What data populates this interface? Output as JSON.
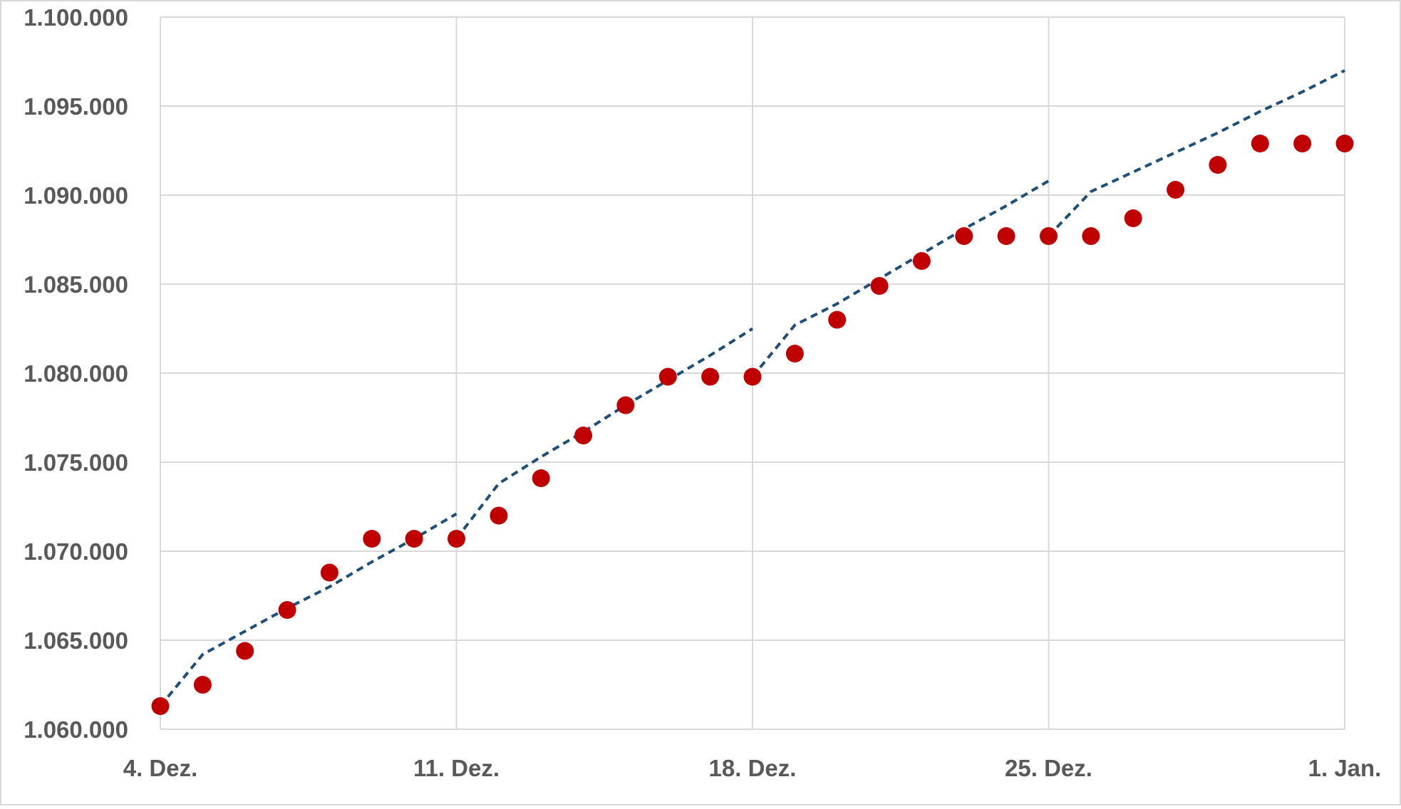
{
  "chart_data": {
    "type": "scatter",
    "title": "",
    "xlabel": "",
    "ylabel": "",
    "x_ticks": [
      "4. Dez.",
      "11. Dez.",
      "18. Dez.",
      "25. Dez.",
      "1. Jan."
    ],
    "y_ticks": [
      "1.060.000",
      "1.065.000",
      "1.070.000",
      "1.075.000",
      "1.080.000",
      "1.085.000",
      "1.090.000",
      "1.095.000",
      "1.100.000"
    ],
    "ylim": [
      1060000,
      1100000
    ],
    "grid": true,
    "legend": "none",
    "series": [
      {
        "kind": "points",
        "color": "#c00000",
        "points": [
          {
            "x": "4. Dez.",
            "y": 1061300
          },
          {
            "x": "5. Dez.",
            "y": 1062500
          },
          {
            "x": "6. Dez.",
            "y": 1064400
          },
          {
            "x": "7. Dez.",
            "y": 1066700
          },
          {
            "x": "8. Dez.",
            "y": 1068800
          },
          {
            "x": "9. Dez.",
            "y": 1070700
          },
          {
            "x": "10. Dez.",
            "y": 1070700
          },
          {
            "x": "11. Dez.",
            "y": 1070700
          },
          {
            "x": "12. Dez.",
            "y": 1072000
          },
          {
            "x": "13. Dez.",
            "y": 1074100
          },
          {
            "x": "14. Dez.",
            "y": 1076500
          },
          {
            "x": "15. Dez.",
            "y": 1078200
          },
          {
            "x": "16. Dez.",
            "y": 1079800
          },
          {
            "x": "17. Dez.",
            "y": 1079800
          },
          {
            "x": "18. Dez.",
            "y": 1079800
          },
          {
            "x": "19. Dez.",
            "y": 1081100
          },
          {
            "x": "20. Dez.",
            "y": 1083000
          },
          {
            "x": "21. Dez.",
            "y": 1084900
          },
          {
            "x": "22. Dez.",
            "y": 1086300
          },
          {
            "x": "23. Dez.",
            "y": 1087700
          },
          {
            "x": "24. Dez.",
            "y": 1087700
          },
          {
            "x": "25. Dez.",
            "y": 1087700
          },
          {
            "x": "26. Dez.",
            "y": 1087700
          },
          {
            "x": "27. Dez.",
            "y": 1088700
          },
          {
            "x": "28. Dez.",
            "y": 1090300
          },
          {
            "x": "29. Dez.",
            "y": 1091700
          },
          {
            "x": "30. Dez.",
            "y": 1092900
          },
          {
            "x": "31. Dez.",
            "y": 1092900
          },
          {
            "x": "1. Jan.",
            "y": 1092900
          }
        ]
      },
      {
        "kind": "dashed-line",
        "color": "#1f4e79",
        "segments": [
          [
            {
              "x": "4. Dez.",
              "y": 1061300
            },
            {
              "x": "5. Dez.",
              "y": 1064200
            },
            {
              "x": "6. Dez.",
              "y": 1065500
            },
            {
              "x": "7. Dez.",
              "y": 1066800
            },
            {
              "x": "8. Dez.",
              "y": 1068000
            },
            {
              "x": "9. Dez.",
              "y": 1069400
            },
            {
              "x": "10. Dez.",
              "y": 1070700
            },
            {
              "x": "11. Dez.",
              "y": 1072100
            }
          ],
          [
            {
              "x": "11. Dez.",
              "y": 1070700
            },
            {
              "x": "12. Dez.",
              "y": 1073800
            },
            {
              "x": "13. Dez.",
              "y": 1075300
            },
            {
              "x": "14. Dez.",
              "y": 1076700
            },
            {
              "x": "15. Dez.",
              "y": 1078200
            },
            {
              "x": "16. Dez.",
              "y": 1079600
            },
            {
              "x": "17. Dez.",
              "y": 1081000
            },
            {
              "x": "18. Dez.",
              "y": 1082500
            }
          ],
          [
            {
              "x": "18. Dez.",
              "y": 1079800
            },
            {
              "x": "19. Dez.",
              "y": 1082700
            },
            {
              "x": "20. Dez.",
              "y": 1083900
            },
            {
              "x": "21. Dez.",
              "y": 1085300
            },
            {
              "x": "22. Dez.",
              "y": 1086700
            },
            {
              "x": "23. Dez.",
              "y": 1088100
            },
            {
              "x": "24. Dez.",
              "y": 1089400
            },
            {
              "x": "25. Dez.",
              "y": 1090800
            }
          ],
          [
            {
              "x": "25. Dez.",
              "y": 1087700
            },
            {
              "x": "26. Dez.",
              "y": 1090200
            },
            {
              "x": "27. Dez.",
              "y": 1091300
            },
            {
              "x": "28. Dez.",
              "y": 1092400
            },
            {
              "x": "29. Dez.",
              "y": 1093500
            },
            {
              "x": "30. Dez.",
              "y": 1094700
            },
            {
              "x": "31. Dez.",
              "y": 1095800
            },
            {
              "x": "1. Jan.",
              "y": 1097000
            }
          ]
        ]
      }
    ]
  }
}
